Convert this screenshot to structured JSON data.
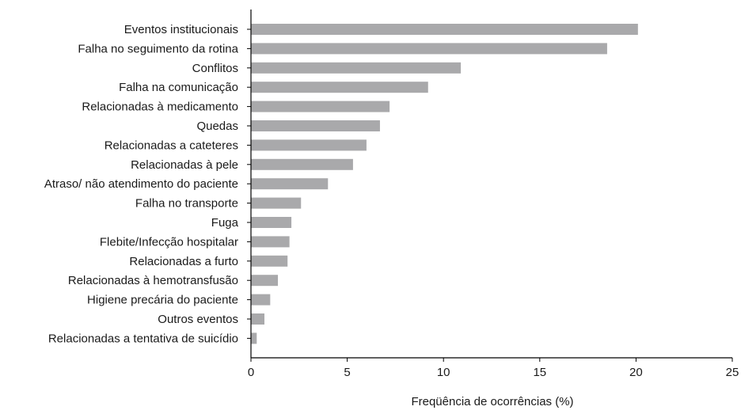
{
  "chart_data": {
    "type": "bar",
    "orientation": "horizontal",
    "title": "",
    "xlabel": "Freqüência de ocorrências (%)",
    "ylabel": "",
    "xlim": [
      0,
      25
    ],
    "xticks": [
      "0",
      "5",
      "10",
      "15",
      "20",
      "25"
    ],
    "grid": false,
    "legend": "none",
    "bar_color": "#a9a9ab",
    "axis_color": "#000000",
    "categories": [
      "Eventos institucionais",
      "Falha no seguimento da rotina",
      "Conflitos",
      "Falha na comunicação",
      "Relacionadas à medicamento",
      "Quedas",
      "Relacionadas a cateteres",
      "Relacionadas à pele",
      "Atraso/ não atendimento do paciente",
      "Falha no transporte",
      "Fuga",
      "Flebite/Infecção hospitalar",
      "Relacionadas a furto",
      "Relacionadas à hemotransfusão",
      "Higiene precária do paciente",
      "Outros eventos",
      "Relacionadas a tentativa de suicídio"
    ],
    "values": [
      20.1,
      18.5,
      10.9,
      9.2,
      7.2,
      6.7,
      6.0,
      5.3,
      4.0,
      2.6,
      2.1,
      2.0,
      1.9,
      1.4,
      1.0,
      0.7,
      0.3
    ]
  }
}
